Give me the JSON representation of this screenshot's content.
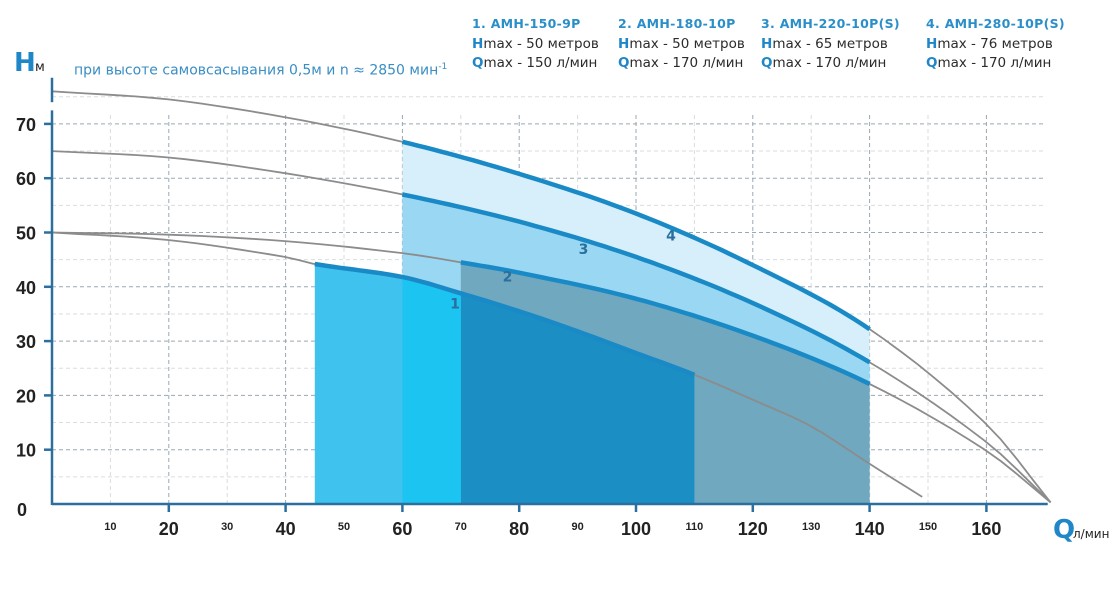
{
  "chart_data": {
    "type": "area",
    "title": "",
    "subtitle": "при высоте самовсасывания 0,5м и n ≈ 2850 мин",
    "subtitle_sup": "-1",
    "xlabel": "Q",
    "xunit": "л/мин",
    "ylabel": "H",
    "yunit": "м",
    "xlim": [
      0,
      172
    ],
    "ylim": [
      0,
      78
    ],
    "grid": true,
    "x_ticks_major": [
      20,
      40,
      60,
      80,
      100,
      120,
      140,
      160
    ],
    "x_ticks_minor": [
      10,
      30,
      50,
      70,
      90,
      110,
      130,
      150
    ],
    "y_ticks": [
      0,
      10,
      20,
      30,
      40,
      50,
      60,
      70
    ],
    "legend_position": "top-right",
    "series": [
      {
        "id": "1",
        "name": "1. АМН-150-9Р",
        "hmax_label": "Hmax - 50 метров",
        "qmax_label": "Qmax - 150 л/мин",
        "hmax": 50,
        "qmax": 150,
        "curve": [
          [
            0,
            50
          ],
          [
            20,
            48.6
          ],
          [
            40,
            45.5
          ],
          [
            45,
            44.2
          ],
          [
            60,
            41.8
          ],
          [
            70,
            38.8
          ],
          [
            80,
            35.5
          ],
          [
            90,
            31.8
          ],
          [
            100,
            27.8
          ],
          [
            110,
            23.8
          ],
          [
            120,
            19.2
          ],
          [
            130,
            14.3
          ],
          [
            140,
            7.4
          ],
          [
            149,
            1.3
          ]
        ],
        "working_range": [
          45,
          110
        ],
        "fill_color": "#3fc3ee",
        "label_at": [
          69,
          36
        ]
      },
      {
        "id": "2",
        "name": "2. АМН-180-10Р",
        "hmax_label": "Hmax - 50 метров",
        "qmax_label": "Qmax - 170 л/мин",
        "hmax": 50,
        "qmax": 170,
        "curve": [
          [
            0,
            50
          ],
          [
            20,
            49.6
          ],
          [
            40,
            48.4
          ],
          [
            60,
            46.2
          ],
          [
            70,
            44.5
          ],
          [
            80,
            42.6
          ],
          [
            100,
            37.8
          ],
          [
            120,
            31
          ],
          [
            140,
            22.1
          ],
          [
            160,
            9.8
          ],
          [
            171,
            0.3
          ]
        ],
        "working_range": [
          70,
          140
        ],
        "fill_color": "#6fa8bf",
        "label_at": [
          78,
          41
        ]
      },
      {
        "id": "3",
        "name": "3. АМН-220-10Р(S)",
        "hmax_label": "Hmax - 65 метров",
        "qmax_label": "Qmax - 170 л/мин",
        "hmax": 65,
        "qmax": 170,
        "curve": [
          [
            0,
            65
          ],
          [
            20,
            63.8
          ],
          [
            40,
            60.9
          ],
          [
            60,
            57
          ],
          [
            80,
            52
          ],
          [
            100,
            45.5
          ],
          [
            120,
            37
          ],
          [
            140,
            26.1
          ],
          [
            160,
            11.4
          ],
          [
            171,
            0.3
          ]
        ],
        "working_range": [
          60,
          140
        ],
        "fill_color": "#9ad7f3",
        "label_at": [
          91,
          46
        ]
      },
      {
        "id": "4",
        "name": "4. АМН-280-10Р(S)",
        "hmax_label": "Hmax - 76 метров",
        "qmax_label": "Qmax - 170 л/мин",
        "hmax": 76,
        "qmax": 170,
        "curve": [
          [
            0,
            76
          ],
          [
            20,
            74.5
          ],
          [
            40,
            71.2
          ],
          [
            60,
            66.7
          ],
          [
            80,
            60.8
          ],
          [
            100,
            53.5
          ],
          [
            120,
            44
          ],
          [
            140,
            32.2
          ],
          [
            160,
            14.7
          ],
          [
            171,
            0.3
          ]
        ],
        "working_range": [
          60,
          140
        ],
        "fill_color": "#d6effb",
        "label_at": [
          106,
          48.5
        ]
      }
    ]
  },
  "legend": [
    {
      "model": "1. АМН-150-9Р",
      "h_letter": "H",
      "h_rest": "max - 50 метров",
      "q_letter": "Q",
      "q_rest": "max - 150 л/мин"
    },
    {
      "model": "2. АМН-180-10Р",
      "h_letter": "H",
      "h_rest": "max - 50 метров",
      "q_letter": "Q",
      "q_rest": "max - 170 л/мин"
    },
    {
      "model": "3. АМН-220-10Р(S)",
      "h_letter": "H",
      "h_rest": "max - 65 метров",
      "q_letter": "Q",
      "q_rest": "max - 170 л/мин"
    },
    {
      "model": "4. АМН-280-10Р(S)",
      "h_letter": "H",
      "h_rest": "max - 76 метров",
      "q_letter": "Q",
      "q_rest": "max - 170 л/мин"
    }
  ],
  "colors": {
    "axis": "#2a6f9e",
    "accent": "#1f86c7",
    "curve_stroke": "#1a8ac7",
    "gray_curve": "#8c8c8c",
    "grid": "#9aa8b4"
  }
}
